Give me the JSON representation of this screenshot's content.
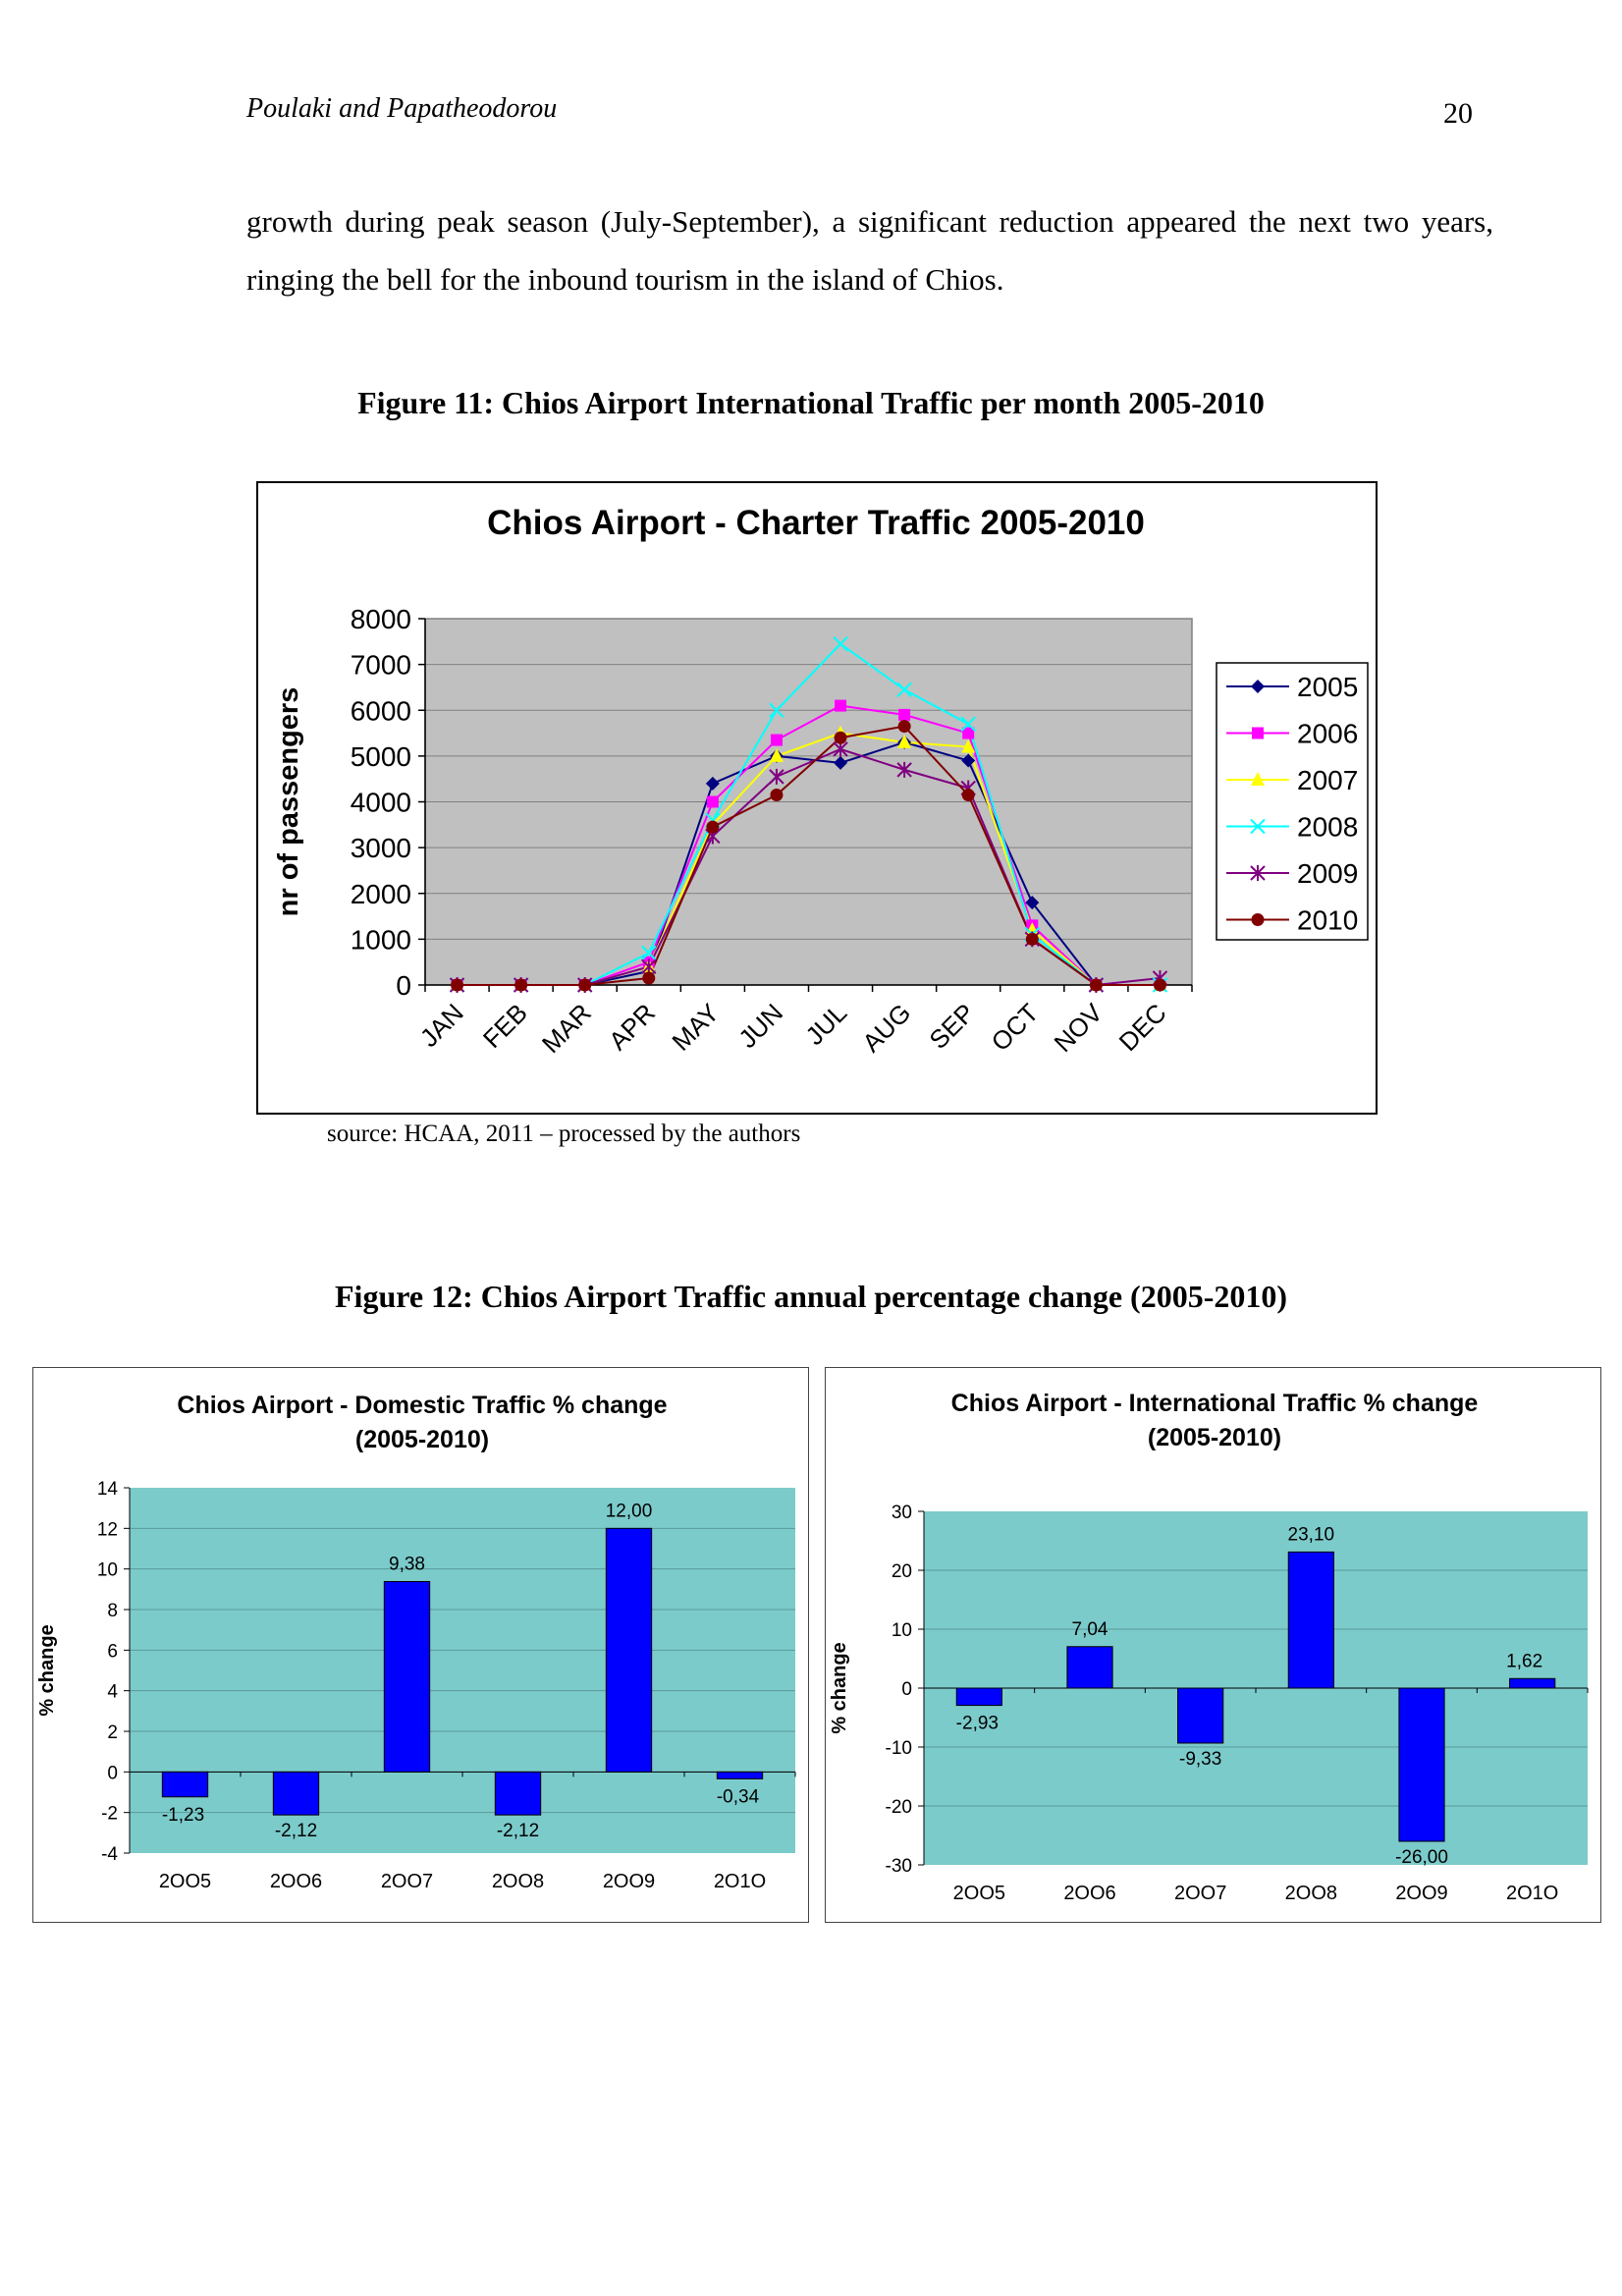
{
  "header": {
    "running_head": "Poulaki and Papatheodorou",
    "page_number": "20"
  },
  "body_text": "growth during peak season (July-September), a significant reduction appeared the next two years, ringing the bell for the inbound tourism in the island of Chios.",
  "figure11": {
    "caption": "Figure 11: Chios Airport International Traffic per month 2005-2010",
    "source": "source: HCAA, 2011 – processed by the authors"
  },
  "figure12": {
    "caption": "Figure 12: Chios Airport Traffic annual percentage change (2005-2010)"
  },
  "chart_data": [
    {
      "type": "line",
      "title": "Chios Airport - Charter Traffic 2005-2010",
      "xlabel": "",
      "ylabel": "nr of passengers",
      "ylim": [
        0,
        8000
      ],
      "yticks": [
        0,
        1000,
        2000,
        3000,
        4000,
        5000,
        6000,
        7000,
        8000
      ],
      "categories": [
        "JAN",
        "FEB",
        "MAR",
        "APR",
        "MAY",
        "JUN",
        "JUL",
        "AUG",
        "SEP",
        "OCT",
        "NOV",
        "DEC"
      ],
      "grid": true,
      "legend": "right",
      "plot_background": "#c0c0c0",
      "series": [
        {
          "name": "2005",
          "color": "#000080",
          "marker": "diamond",
          "values": [
            0,
            0,
            0,
            300,
            4400,
            5000,
            4850,
            5300,
            4900,
            1800,
            0,
            0
          ]
        },
        {
          "name": "2006",
          "color": "#ff00ff",
          "marker": "square",
          "values": [
            0,
            0,
            0,
            500,
            4000,
            5350,
            6100,
            5900,
            5500,
            1300,
            0,
            0
          ]
        },
        {
          "name": "2007",
          "color": "#ffff00",
          "marker": "triangle",
          "values": [
            0,
            0,
            0,
            400,
            3500,
            5000,
            5500,
            5300,
            5200,
            1200,
            0,
            0
          ]
        },
        {
          "name": "2008",
          "color": "#00ffff",
          "marker": "x",
          "values": [
            0,
            0,
            0,
            700,
            3600,
            6000,
            7450,
            6450,
            5700,
            1100,
            0,
            0
          ]
        },
        {
          "name": "2009",
          "color": "#800080",
          "marker": "star",
          "values": [
            0,
            0,
            0,
            400,
            3250,
            4550,
            5150,
            4700,
            4300,
            1000,
            0,
            150
          ]
        },
        {
          "name": "2010",
          "color": "#800000",
          "marker": "circle",
          "values": [
            0,
            0,
            0,
            150,
            3450,
            4150,
            5400,
            5650,
            4150,
            1000,
            0,
            0
          ]
        }
      ]
    },
    {
      "type": "bar",
      "title": "Chios Airport - Domestic Traffic % change (2005-2010)",
      "title_lines": [
        "Chios Airport - Domestic Traffic % change",
        "(2005-2010)"
      ],
      "xlabel": "",
      "ylabel": "% change",
      "ylim": [
        -4,
        14
      ],
      "yticks": [
        -4,
        -2,
        0,
        2,
        4,
        6,
        8,
        10,
        12,
        14
      ],
      "categories": [
        "2OO5",
        "2OO6",
        "2OO7",
        "2OO8",
        "2OO9",
        "2O1O"
      ],
      "values": [
        -1.23,
        -2.12,
        9.38,
        -2.12,
        12.0,
        -0.34
      ],
      "value_labels": [
        "-1,23",
        "-2,12",
        "9,38",
        "-2,12",
        "12,00",
        "-0,34"
      ],
      "grid": true,
      "plot_background": "#7ccbcb",
      "bar_color": "#0000ff"
    },
    {
      "type": "bar",
      "title": "Chios Airport - International Traffic % change (2005-2010)",
      "title_lines": [
        "Chios Airport - International Traffic % change",
        "(2005-2010)"
      ],
      "xlabel": "",
      "ylabel": "% change",
      "ylim": [
        -30,
        30
      ],
      "yticks": [
        -30,
        -20,
        -10,
        0,
        10,
        20,
        30
      ],
      "categories": [
        "2OO5",
        "2OO6",
        "2OO7",
        "2OO8",
        "2OO9",
        "2O1O"
      ],
      "values": [
        -2.93,
        7.04,
        -9.33,
        23.1,
        -26.0,
        1.62
      ],
      "value_labels": [
        "-2,93",
        "7,04",
        "-9,33",
        "23,10",
        "-26,00",
        "1,62"
      ],
      "grid": true,
      "plot_background": "#7ccbcb",
      "bar_color": "#0000ff"
    }
  ]
}
